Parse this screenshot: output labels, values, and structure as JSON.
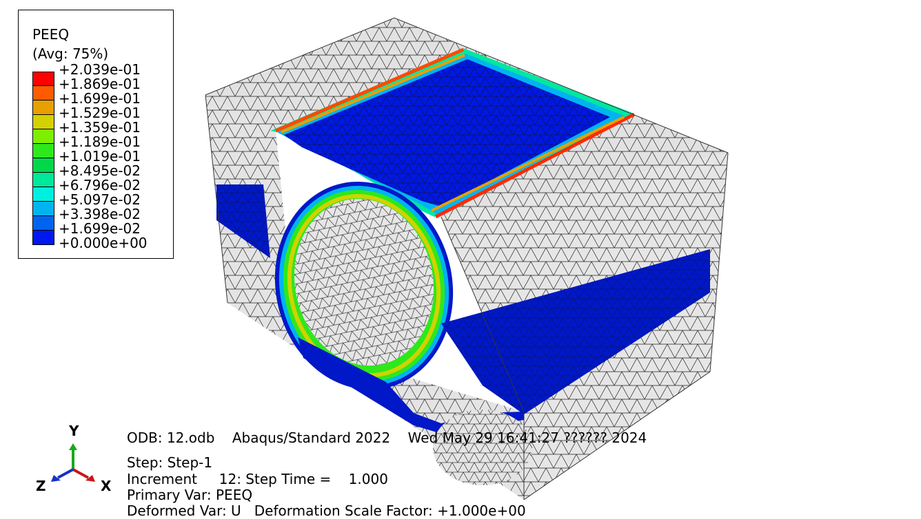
{
  "legend": {
    "title": "PEEQ",
    "subtitle": "(Avg: 75%)",
    "labels": [
      "+2.039e-01",
      "+1.869e-01",
      "+1.699e-01",
      "+1.529e-01",
      "+1.359e-01",
      "+1.189e-01",
      "+1.019e-01",
      "+8.495e-02",
      "+6.796e-02",
      "+5.097e-02",
      "+3.398e-02",
      "+1.699e-02",
      "+0.000e+00"
    ],
    "colors": [
      "#ff0000",
      "#ff5a00",
      "#e8a000",
      "#d2d200",
      "#7cf000",
      "#2ee81c",
      "#00d84a",
      "#00e89a",
      "#00f0e0",
      "#00b4f0",
      "#0064f0",
      "#0018f0"
    ]
  },
  "info": {
    "odb_line": "ODB: 12.odb    Abaqus/Standard 2022    Wed May 29 16:41:27 ?????? 2024",
    "step_line": "Step: Step-1",
    "increment_line": "Increment     12: Step Time =    1.000",
    "primary_var_line": "Primary Var: PEEQ",
    "deformed_var_line": "Deformed Var: U   Deformation Scale Factor: +1.000e+00"
  },
  "triad": {
    "x_label": "X",
    "y_label": "Y",
    "z_label": "Z"
  },
  "colors": {
    "mesh_grey": "#e4e4e4",
    "band_blue": "#0018c8",
    "mesh_line": "#1a1a1a"
  }
}
